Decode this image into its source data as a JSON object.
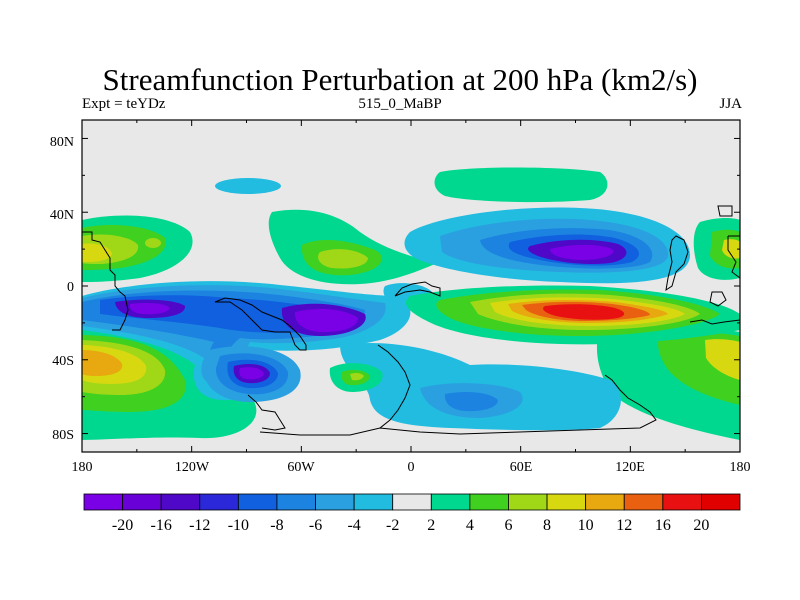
{
  "header": {
    "title": "Streamfunction Perturbation at 200 hPa (km2/s)",
    "left_label": "Expt = teYDz",
    "center_label": "515_0_MaBP",
    "right_label": "JJA"
  },
  "chart_data": {
    "type": "heatmap",
    "title": "Streamfunction Perturbation at 200 hPa (km2/s)",
    "xlabel": "",
    "ylabel": "",
    "xlim": [
      -180,
      180
    ],
    "ylim": [
      -90,
      90
    ],
    "x_ticks": [
      {
        "value": -180,
        "label": "180"
      },
      {
        "value": -120,
        "label": "120W"
      },
      {
        "value": -60,
        "label": "60W"
      },
      {
        "value": 0,
        "label": "0"
      },
      {
        "value": 60,
        "label": "60E"
      },
      {
        "value": 120,
        "label": "120E"
      },
      {
        "value": 180,
        "label": "180"
      }
    ],
    "y_ticks": [
      {
        "value": 80,
        "label": "80N"
      },
      {
        "value": 40,
        "label": "40N"
      },
      {
        "value": 0,
        "label": "0"
      },
      {
        "value": -40,
        "label": "40S"
      },
      {
        "value": -80,
        "label": "80S"
      }
    ],
    "colorbar": {
      "labels": [
        "-20",
        "-16",
        "-12",
        "-10",
        "-8",
        "-6",
        "-4",
        "-2",
        "2",
        "4",
        "6",
        "8",
        "10",
        "12",
        "16",
        "20"
      ],
      "colors": [
        "#7a00e6",
        "#6a00d8",
        "#4f08c8",
        "#2a28d8",
        "#1060e0",
        "#1c84e0",
        "#2aa0e0",
        "#22bce0",
        "#e8e8e8",
        "#00d890",
        "#40d020",
        "#a0d818",
        "#d8d810",
        "#e8a810",
        "#e86010",
        "#e81010",
        "#e00000"
      ]
    },
    "features": [
      {
        "name": "SH subtropical negative band",
        "lon_range": [
          -170,
          10
        ],
        "lat_range": [
          -40,
          0
        ],
        "min_value": -20
      },
      {
        "name": "Indian Ocean positive center",
        "lon": 95,
        "lat": -15,
        "max_value": 20
      },
      {
        "name": "Asian negative center",
        "lon": 100,
        "lat": 15,
        "min_value": -20
      },
      {
        "name": "South Pacific negative center",
        "lon": -85,
        "lat": -47,
        "min_value": -20
      },
      {
        "name": "Southern high-latitude positive band",
        "lon_range": [
          -180,
          -90
        ],
        "lat_range": [
          -80,
          -35
        ],
        "max_value": 12
      }
    ]
  }
}
